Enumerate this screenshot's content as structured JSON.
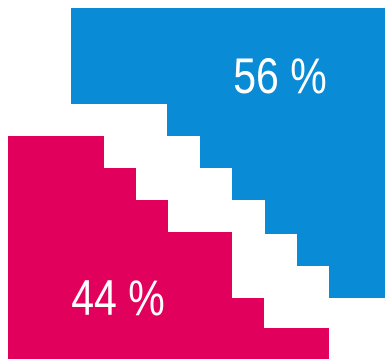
{
  "chart_data": {
    "type": "steps",
    "values": [
      56,
      44
    ],
    "value_labels": [
      "56 %",
      "44 %"
    ],
    "colors": [
      "#0a8bd6",
      "#e2005d"
    ]
  }
}
